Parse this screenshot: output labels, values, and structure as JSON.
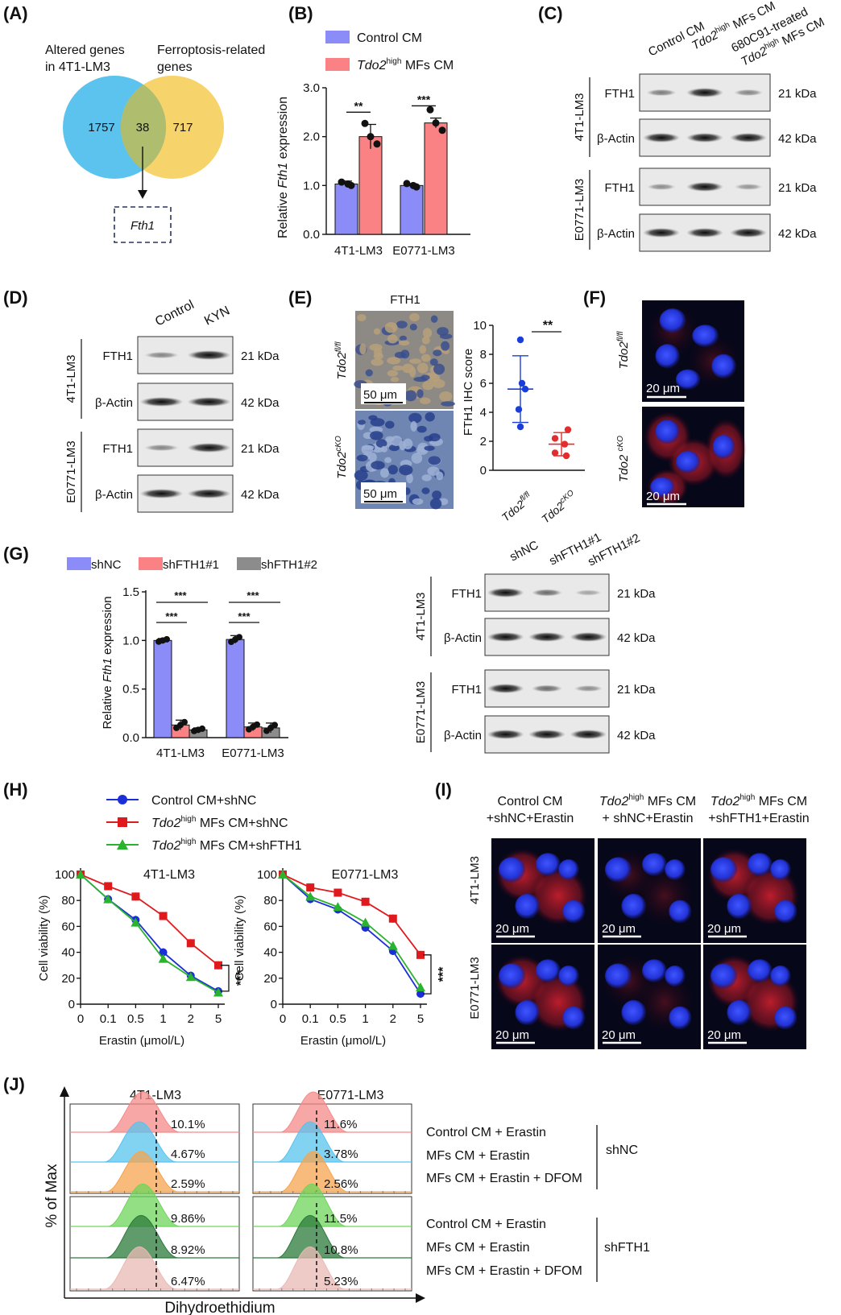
{
  "A": {
    "label": "(A)",
    "left_title": [
      "Altered genes",
      "in 4T1-LM3"
    ],
    "right_title": [
      "Ferroptosis-related",
      "genes"
    ],
    "left_only": "1757",
    "overlap": "38",
    "right_only": "717",
    "gene": "Fth1",
    "colors": {
      "left": "#5bc3ee",
      "right": "#f7d36b",
      "overlap": "#aebd6e"
    }
  },
  "B": {
    "label": "(B)",
    "legend": [
      {
        "pre": "Control CM",
        "sup": "",
        "post": "",
        "italic_pre": false
      },
      {
        "pre": "Tdo2",
        "sup": "high",
        "post": " MFs CM",
        "italic_pre": true
      }
    ],
    "ylabel": {
      "pre": "Relative ",
      "ital": "Fth1",
      "post": " expression"
    },
    "yticks": [
      "0.0",
      "1.0",
      "2.0",
      "3.0"
    ],
    "sig": [
      "**",
      "***"
    ],
    "colors": {
      "control": "#8b8cf7",
      "tdo2": "#fa8284"
    },
    "chart_data": {
      "type": "bar",
      "categories": [
        "4T1-LM3",
        "E0771-LM3"
      ],
      "series": [
        {
          "name": "Control CM",
          "values": [
            1.03,
            1.0
          ],
          "sd": [
            0.06,
            0.03
          ]
        },
        {
          "name": "Tdo2high MFs CM",
          "values": [
            2.0,
            2.28
          ],
          "sd": [
            0.25,
            0.1
          ]
        }
      ],
      "ylim": [
        0,
        3.0
      ]
    }
  },
  "C": {
    "label": "(C)",
    "lanes": [
      {
        "pre": "Control CM",
        "sup": "",
        "post": ""
      },
      {
        "pre": "Tdo2",
        "sup": "high",
        "post": " MFs CM"
      },
      {
        "pre": "680C91-treated",
        "sup": "",
        "post": ""
      },
      {
        "pre": "Tdo2",
        "sup": "high",
        "post": " MFs CM"
      }
    ],
    "groups": [
      "4T1-LM3",
      "E0771-LM3"
    ],
    "proteins": [
      "FTH1",
      "β-Actin"
    ],
    "sizes": [
      "21 kDa",
      "42 kDa"
    ]
  },
  "D": {
    "label": "(D)",
    "lanes": [
      "Control",
      "KYN"
    ],
    "groups": [
      "4T1-LM3",
      "E0771-LM3"
    ],
    "proteins": [
      "FTH1",
      "β-Actin"
    ],
    "sizes": [
      "21 kDa",
      "42 kDa"
    ]
  },
  "E": {
    "label": "(E)",
    "title": "FTH1",
    "scale": "50 μm",
    "rows": [
      {
        "pre": "Tdo2",
        "sup": "fl/fl"
      },
      {
        "pre": "Tdo2",
        "sup": "cKO"
      }
    ],
    "ylabel": "FTH1 IHC score",
    "yticks": [
      "0",
      "2",
      "4",
      "6",
      "8",
      "10"
    ],
    "sig": "**",
    "colors": {
      "fl": "#1a3fd9",
      "cko": "#e32d2d"
    },
    "chart_data": {
      "type": "scatter",
      "groups": [
        "Tdo2fl/fl",
        "Tdo2cKO"
      ],
      "points": [
        [
          9.0,
          6.0,
          5.6,
          4.2,
          3.0
        ],
        [
          2.8,
          2.2,
          1.8,
          1.2,
          1.0
        ]
      ],
      "mean": [
        5.6,
        1.8
      ],
      "sd": [
        2.3,
        0.8
      ],
      "ylim": [
        0,
        10
      ]
    }
  },
  "F": {
    "label": "(F)",
    "rows": [
      {
        "pre": "Tdo2",
        "sup": "fl/fl"
      },
      {
        "pre": "Tdo2 ",
        "sup": "cKO"
      }
    ],
    "scale": "20 μm"
  },
  "G": {
    "label": "(G)",
    "legend": [
      "shNC",
      "shFTH1#1",
      "shFTH1#2"
    ],
    "ylabel": {
      "pre": "Relative ",
      "ital": "Fth1",
      "post": " expression"
    },
    "yticks": [
      "0.0",
      "0.5",
      "1.0",
      "1.5"
    ],
    "sig": "***",
    "colors": {
      "shNC": "#8b8cf7",
      "sh1": "#fa8284",
      "sh2": "#8c8c8c"
    },
    "chart_data": {
      "type": "bar",
      "categories": [
        "4T1-LM3",
        "E0771-LM3"
      ],
      "series": [
        {
          "name": "shNC",
          "values": [
            1.0,
            1.01
          ],
          "sd": [
            0.02,
            0.04
          ]
        },
        {
          "name": "shFTH1#1",
          "values": [
            0.13,
            0.11
          ],
          "sd": [
            0.05,
            0.04
          ]
        },
        {
          "name": "shFTH1#2",
          "values": [
            0.08,
            0.1
          ],
          "sd": [
            0.02,
            0.05
          ]
        }
      ],
      "ylim": [
        0,
        1.5
      ]
    },
    "blot": {
      "lanes": [
        "shNC",
        "shFTH1#1",
        "shFTH1#2"
      ],
      "groups": [
        "4T1-LM3",
        "E0771-LM3"
      ],
      "proteins": [
        "FTH1",
        "β-Actin"
      ],
      "sizes": [
        "21 kDa",
        "42 kDa"
      ]
    }
  },
  "H": {
    "label": "(H)",
    "legend": [
      {
        "pre": "Control CM+shNC",
        "sup": "",
        "post": "",
        "italic_pre": false
      },
      {
        "pre": "Tdo2",
        "sup": "high",
        "post": " MFs CM+shNC",
        "italic_pre": true
      },
      {
        "pre": "Tdo2",
        "sup": "high",
        "post": " MFs CM+shFTH1",
        "italic_pre": true
      }
    ],
    "ylabel": "Cell viability (%)",
    "xlabel": "Erastin (μmol/L)",
    "yticks": [
      "0",
      "20",
      "40",
      "60",
      "80",
      "100"
    ],
    "xticks": [
      "0",
      "0.1",
      "0.5",
      "1",
      "2",
      "5"
    ],
    "sig": "***",
    "colors": {
      "control": "#1b2fd6",
      "tdo2": "#e0191d",
      "shfth1": "#2ab32f"
    },
    "chart_data": [
      {
        "type": "line",
        "title": "4T1-LM3",
        "x": [
          "0",
          "0.1",
          "0.5",
          "1",
          "2",
          "5"
        ],
        "series": [
          {
            "name": "Control CM+shNC",
            "values": [
              100,
              81,
              65,
              40,
              22,
              10
            ]
          },
          {
            "name": "Tdo2high MFs CM+shNC",
            "values": [
              100,
              91,
              83,
              68,
              47,
              30
            ]
          },
          {
            "name": "Tdo2high MFs CM+shFTH1",
            "values": [
              100,
              81,
              63,
              35,
              21,
              9
            ]
          }
        ],
        "ylim": [
          0,
          100
        ]
      },
      {
        "type": "line",
        "title": "E0771-LM3",
        "x": [
          "0",
          "0.1",
          "0.5",
          "1",
          "2",
          "5"
        ],
        "series": [
          {
            "name": "Control CM+shNC",
            "values": [
              100,
              81,
              73,
              59,
              41,
              8
            ]
          },
          {
            "name": "Tdo2high MFs CM+shNC",
            "values": [
              100,
              90,
              86,
              79,
              66,
              38
            ]
          },
          {
            "name": "Tdo2high MFs CM+shFTH1",
            "values": [
              100,
              83,
              75,
              63,
              45,
              13
            ]
          }
        ],
        "ylim": [
          0,
          100
        ]
      }
    ]
  },
  "I": {
    "label": "(I)",
    "cols": [
      {
        "l1pre": "Control CM",
        "l1sup": "",
        "l1post": "",
        "l2": "+shNC+Erastin"
      },
      {
        "l1pre": "Tdo2",
        "l1sup": "high",
        "l1post": " MFs CM",
        "l2": "+ shNC+Erastin"
      },
      {
        "l1pre": "Tdo2",
        "l1sup": "high",
        "l1post": " MFs CM",
        "l2": "+shFTH1+Erastin"
      }
    ],
    "rows": [
      "4T1-LM3",
      "E0771-LM3"
    ],
    "scale": "20 μm"
  },
  "J": {
    "label": "(J)",
    "titles": [
      "4T1-LM3",
      "E0771-LM3"
    ],
    "ylabel": "% of Max",
    "xlabel": "Dihydroethidium",
    "shNC": {
      "percents": [
        [
          "10.1%",
          "4.67%",
          "2.59%"
        ],
        [
          "11.6%",
          "3.78%",
          "2.56%"
        ]
      ],
      "conditions": [
        "Control CM + Erastin",
        "MFs CM + Erastin",
        "MFs CM + Erastin + DFOM"
      ],
      "group": "shNC"
    },
    "shFTH1": {
      "percents": [
        [
          "9.86%",
          "8.92%",
          "6.47%"
        ],
        [
          "11.5%",
          "10.8%",
          "5.23%"
        ]
      ],
      "conditions": [
        "Control CM + Erastin",
        "MFs CM + Erastin",
        "MFs CM + Erastin + DFOM"
      ],
      "group": "shFTH1"
    },
    "colors": {
      "top": [
        "#f58a8a",
        "#58c3ee",
        "#f5a44f"
      ],
      "bottom": [
        "#6fd55b",
        "#2b7a3b",
        "#e9b9b5"
      ]
    }
  }
}
